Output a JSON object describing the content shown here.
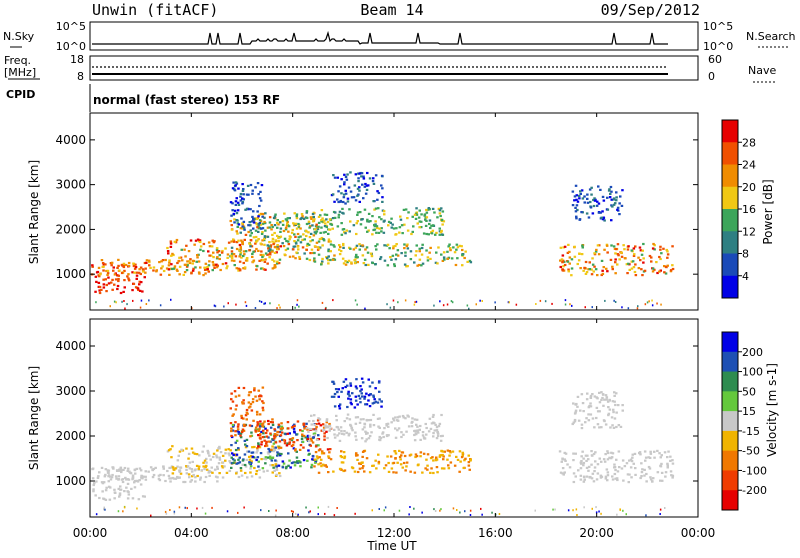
{
  "header": {
    "station": "Unwin (fitACF)",
    "beam": "Beam 14",
    "date": "09/Sep/2012"
  },
  "noise_panel": {
    "left_label": "N.Sky",
    "right_label": "N.Search",
    "left_ticks": [
      "10^5",
      "10^0"
    ],
    "right_ticks": [
      "10^5",
      "10^0"
    ]
  },
  "freq_panel": {
    "left_label_top": "Freq.",
    "left_label_bottom": "[MHz]",
    "left_ticks": [
      "18",
      "8"
    ],
    "right_ticks": [
      "60",
      "0"
    ],
    "right_label": "Nave"
  },
  "cpid_panel": {
    "label": "CPID",
    "text": "normal (fast stereo) 153 RF"
  },
  "chart_data": [
    {
      "type": "heatmap",
      "name": "power",
      "ylabel": "Slant Range [km]",
      "yticks": [
        "1000",
        "2000",
        "3000",
        "4000"
      ],
      "ylim": [
        200,
        4600
      ],
      "colorbar_label": "Power [dB]",
      "colorbar_ticks": [
        "4",
        "8",
        "12",
        "16",
        "20",
        "24",
        "28"
      ],
      "colorbar_range": [
        0,
        32
      ],
      "colors": [
        "#0000e6",
        "#1a4ab8",
        "#2e7f82",
        "#3ca55a",
        "#f0c814",
        "#f08c00",
        "#f05000",
        "#e60000"
      ]
    },
    {
      "type": "heatmap",
      "name": "velocity",
      "ylabel": "Slant Range [km]",
      "yticks": [
        "1000",
        "2000",
        "3000",
        "4000"
      ],
      "ylim": [
        200,
        4600
      ],
      "colorbar_label": "Velocity [m s-1]",
      "colorbar_ticks": [
        "200",
        "100",
        "50",
        "15",
        "-15",
        "-50",
        "-100",
        "-200"
      ],
      "colors": [
        "#0000e6",
        "#1e50b4",
        "#2e8c50",
        "#64c83c",
        "#c8c8c8",
        "#f0b400",
        "#f07800",
        "#f03c00",
        "#e60000"
      ]
    }
  ],
  "xaxis": {
    "label": "Time UT",
    "ticks": [
      "00:00",
      "04:00",
      "08:00",
      "12:00",
      "16:00",
      "20:00",
      "00:00"
    ]
  }
}
